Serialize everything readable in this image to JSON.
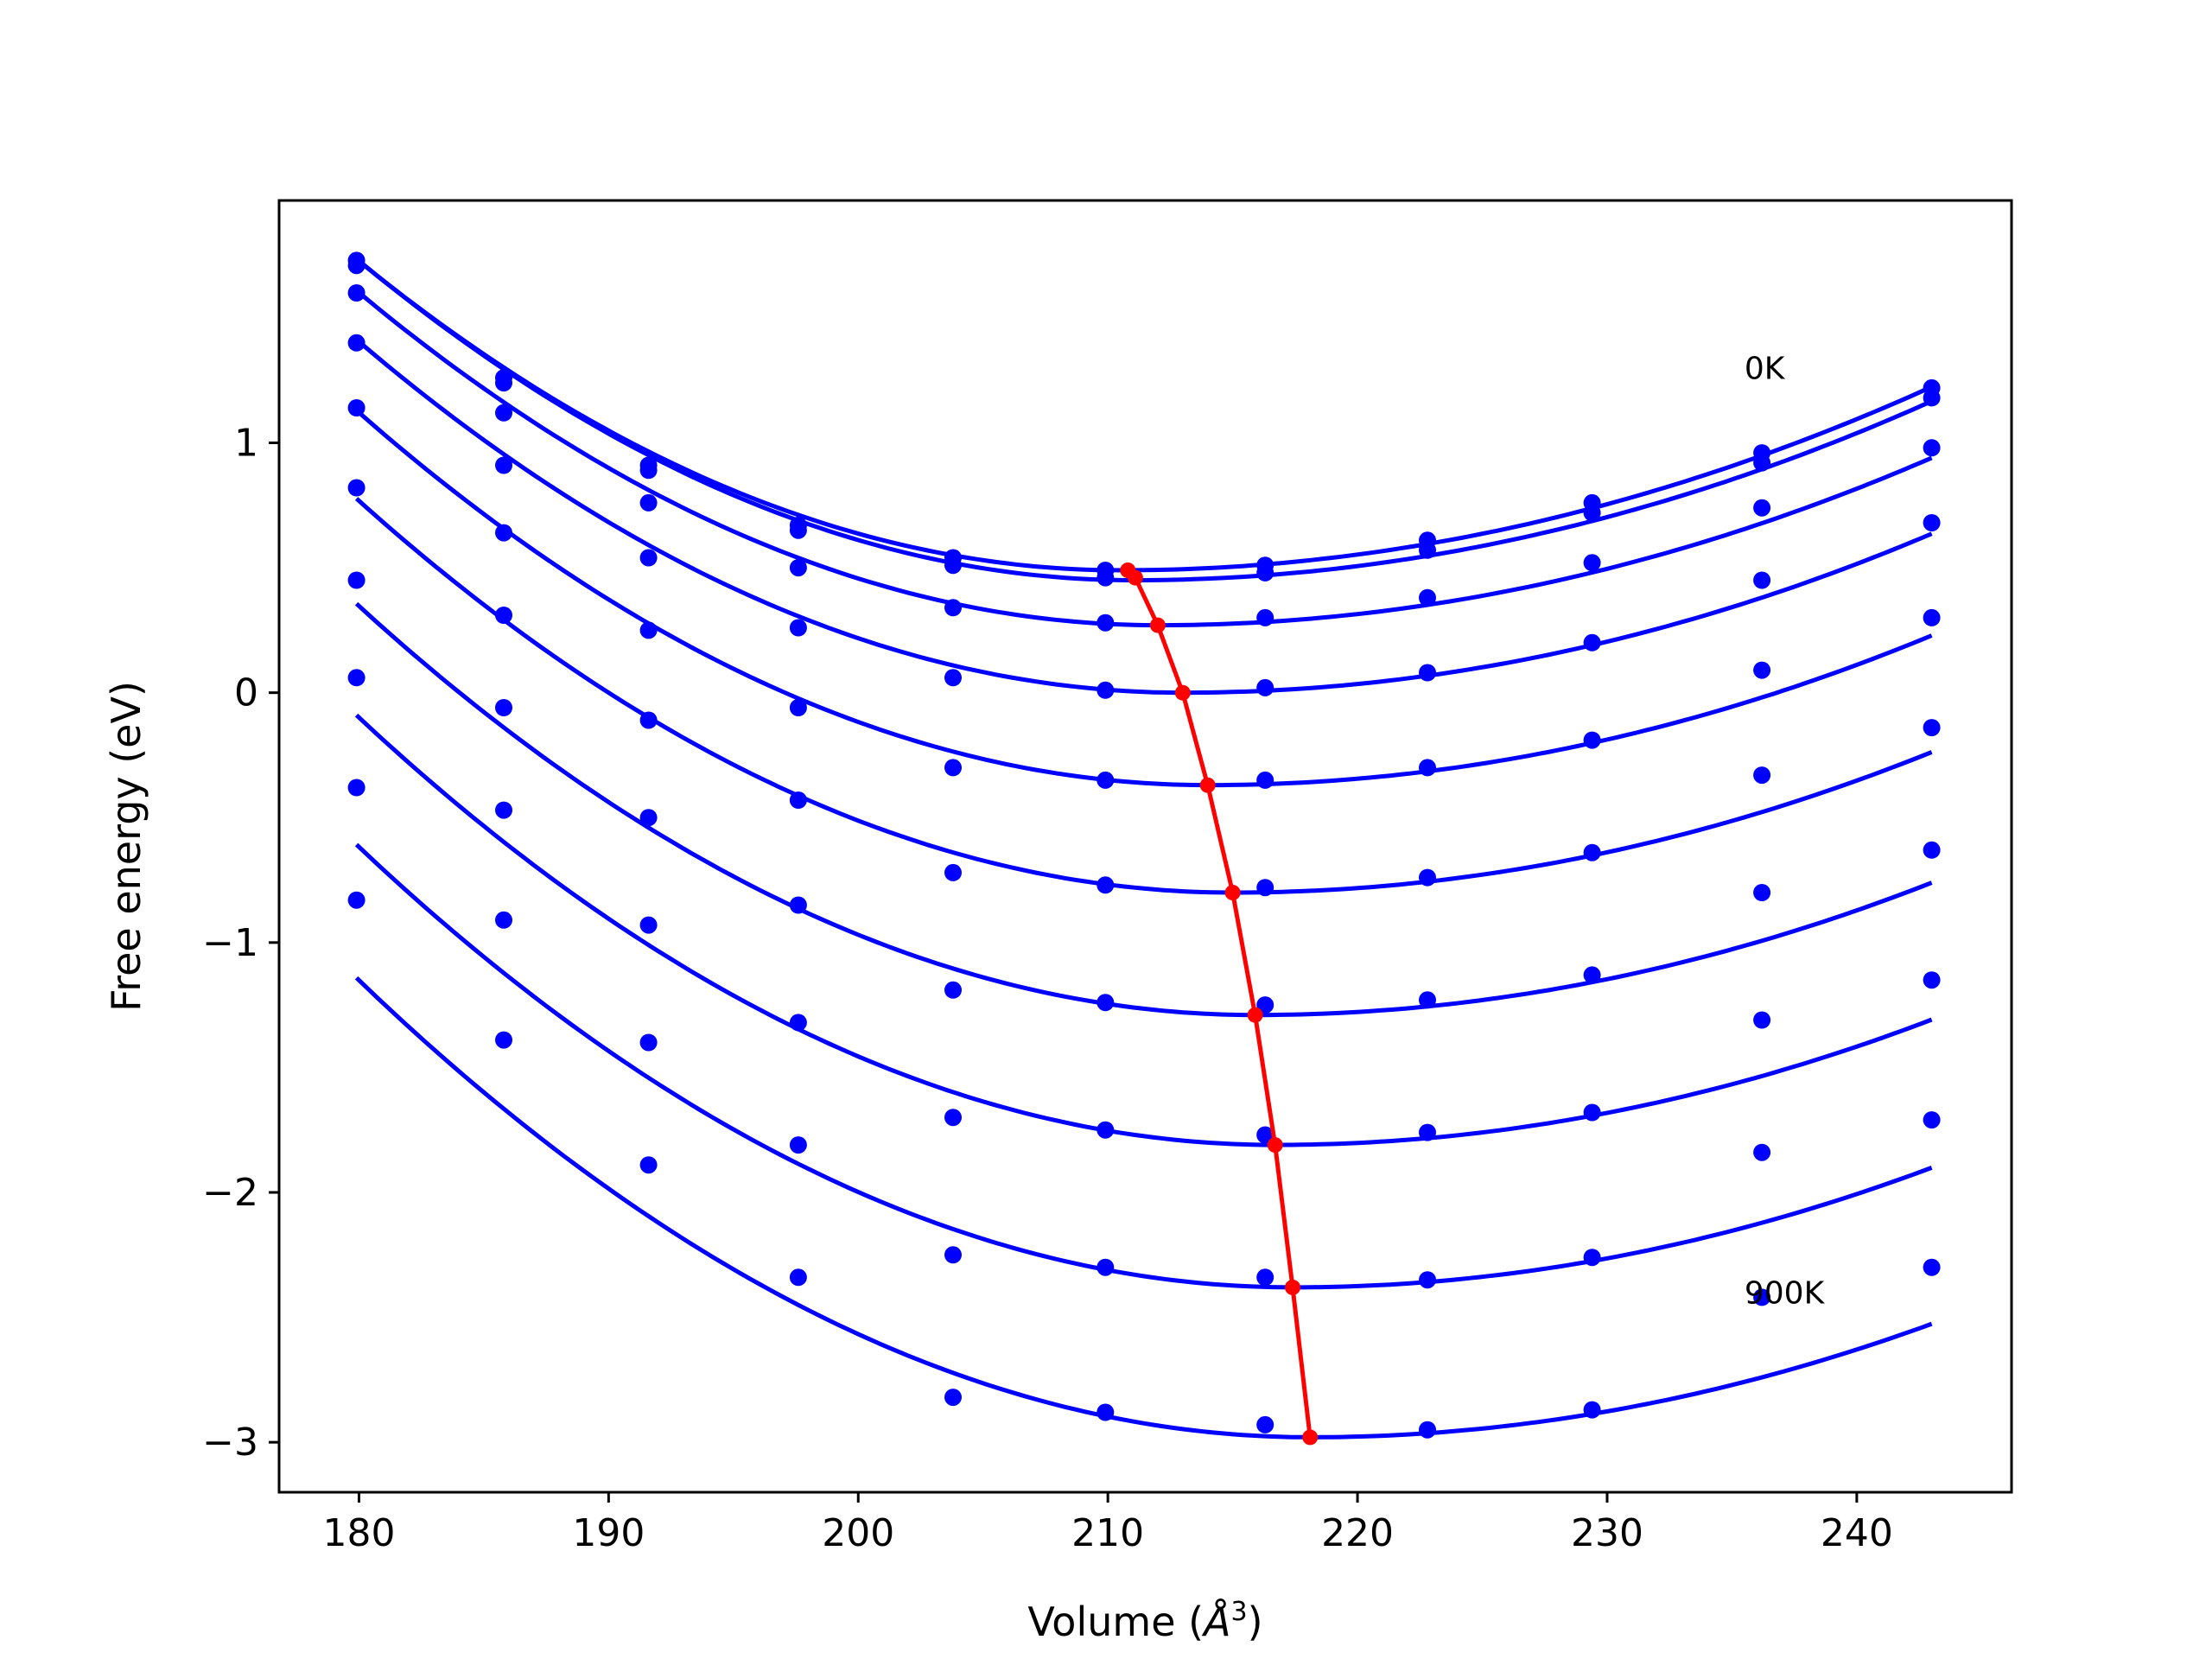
{
  "chart_data": {
    "type": "scatter",
    "title": "",
    "xlabel": "Volume (",
    "xlabel_unit": "Å",
    "xlabel_exponent": "3",
    "xlabel_close": ")",
    "ylabel": "Free energy (eV)",
    "xlim": [
      176.8,
      246.2
    ],
    "ylim": [
      -3.2,
      1.97
    ],
    "x_ticks": [
      180,
      190,
      200,
      210,
      220,
      230,
      240
    ],
    "x_tick_labels": [
      "180",
      "190",
      "200",
      "210",
      "220",
      "230",
      "240"
    ],
    "y_ticks": [
      1,
      0,
      -1,
      -2,
      -3
    ],
    "y_tick_labels": [
      "1",
      "0",
      "−1",
      "−2",
      "−3"
    ],
    "grid": false,
    "annotations": [
      {
        "text": "0K",
        "x": 235.5,
        "y": 1.3
      },
      {
        "text": "900K",
        "x": 235.5,
        "y": -2.4
      }
    ],
    "colors": {
      "fit_curves": "#0000ff",
      "points": "#0000ff",
      "minimum_path": "#ff0000",
      "axes": "#000000"
    },
    "volumes": [
      179.9,
      185.8,
      191.6,
      197.6,
      203.8,
      209.9,
      216.3,
      222.8,
      229.4,
      236.2,
      243.0
    ],
    "series": [
      {
        "values": [
          1.73,
          1.26,
          0.91,
          0.67,
          0.54,
          0.49,
          0.51,
          0.61,
          0.76,
          0.96,
          1.22
        ],
        "fit": {
          "v0": 210.5,
          "e0": 0.49,
          "curv_left": 0.00133,
          "curv_right": 0.000695
        }
      },
      {
        "values": [
          1.71,
          1.24,
          0.89,
          0.65,
          0.51,
          0.46,
          0.48,
          0.57,
          0.72,
          0.92,
          1.18
        ],
        "fit": {
          "v0": 211.0,
          "e0": 0.45,
          "curv_left": 0.00133,
          "curv_right": 0.0007
        }
      },
      {
        "values": [
          1.6,
          1.12,
          0.76,
          0.5,
          0.34,
          0.28,
          0.3,
          0.38,
          0.52,
          0.74,
          0.98
        ],
        "fit": {
          "v0": 212.0,
          "e0": 0.27,
          "curv_left": 0.0013,
          "curv_right": 0.000697
        }
      },
      {
        "values": [
          1.4,
          0.91,
          0.54,
          0.26,
          0.06,
          0.01,
          0.02,
          0.08,
          0.2,
          0.45,
          0.68
        ],
        "fit": {
          "v0": 213.0,
          "e0": 0.0,
          "curv_left": 0.00129,
          "curv_right": 0.000707
        }
      },
      {
        "values": [
          1.14,
          0.64,
          0.25,
          -0.06,
          -0.3,
          -0.35,
          -0.35,
          -0.3,
          -0.19,
          0.09,
          0.3
        ],
        "fit": {
          "v0": 214.0,
          "e0": -0.37,
          "curv_left": 0.00129,
          "curv_right": 0.000712
        }
      },
      {
        "values": [
          0.82,
          0.31,
          -0.11,
          -0.43,
          -0.72,
          -0.77,
          -0.78,
          -0.74,
          -0.64,
          -0.33,
          -0.14
        ],
        "fit": {
          "v0": 215.0,
          "e0": -0.8,
          "curv_left": 0.00128,
          "curv_right": 0.000717
        }
      },
      {
        "values": [
          0.45,
          -0.06,
          -0.5,
          -0.85,
          -1.19,
          -1.24,
          -1.25,
          -1.23,
          -1.13,
          -0.8,
          -0.63
        ],
        "fit": {
          "v0": 215.9,
          "e0": -1.29,
          "curv_left": 0.00127,
          "curv_right": 0.000721
        }
      },
      {
        "values": [
          0.06,
          -0.47,
          -0.93,
          -1.32,
          -1.7,
          -1.75,
          -1.77,
          -1.76,
          -1.68,
          -1.31,
          -1.15
        ],
        "fit": {
          "v0": 216.7,
          "e0": -1.81,
          "curv_left": 0.00127,
          "curv_right": 0.000725
        }
      },
      {
        "values": [
          -0.38,
          -0.91,
          -1.4,
          -1.81,
          -2.25,
          -2.3,
          -2.34,
          -2.35,
          -2.26,
          -1.84,
          -1.71
        ],
        "fit": {
          "v0": 217.4,
          "e0": -2.38,
          "curv_left": 0.00126,
          "curv_right": 0.000731
        }
      },
      {
        "values": [
          -0.83,
          -1.39,
          -1.89,
          -2.34,
          -2.82,
          -2.88,
          -2.93,
          -2.95,
          -2.87,
          -2.42,
          -2.3
        ],
        "fit": {
          "v0": 218.1,
          "e0": -2.98,
          "curv_left": 0.00126,
          "curv_right": 0.000732
        }
      }
    ],
    "minimum_path": {
      "x": [
        210.8,
        211.1,
        212.0,
        213.0,
        214.0,
        215.0,
        215.9,
        216.7,
        217.4,
        218.1
      ],
      "y": [
        0.49,
        0.46,
        0.27,
        0.0,
        -0.37,
        -0.8,
        -1.29,
        -1.81,
        -2.38,
        -2.98
      ]
    }
  }
}
